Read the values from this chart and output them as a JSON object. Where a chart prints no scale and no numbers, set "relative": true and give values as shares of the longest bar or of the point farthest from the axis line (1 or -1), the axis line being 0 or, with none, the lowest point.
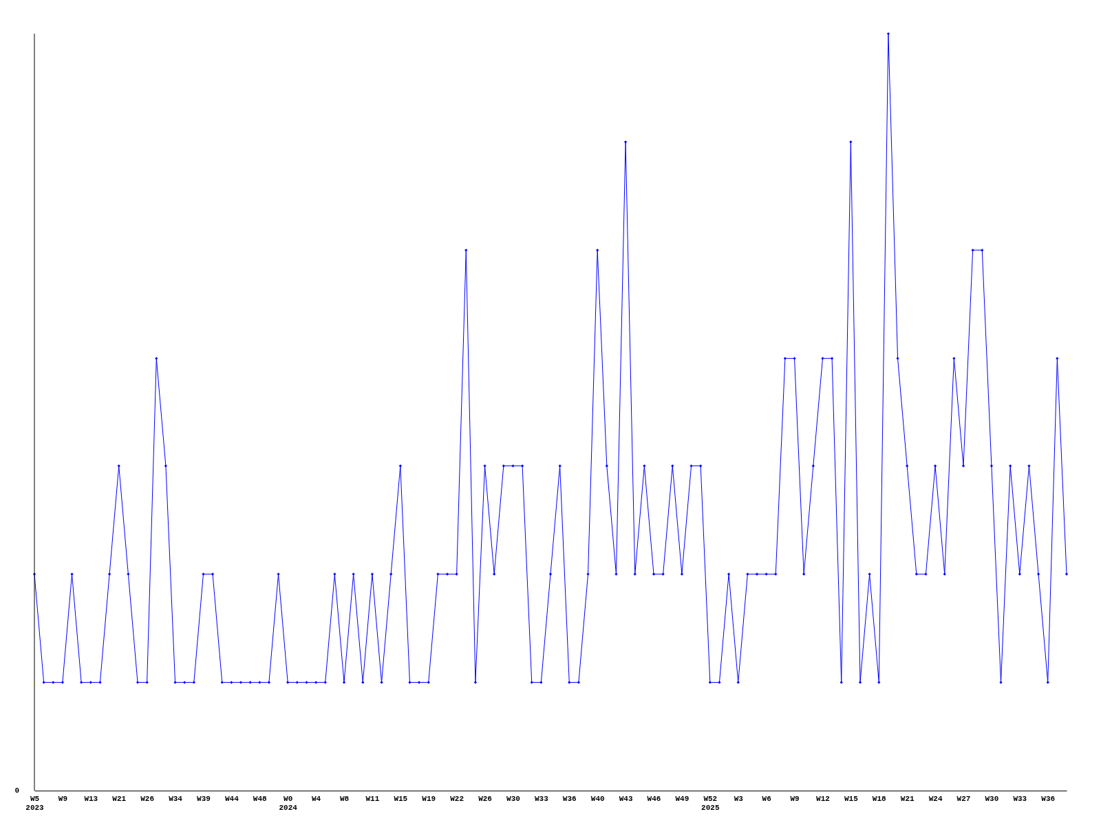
{
  "chart_data": {
    "type": "line",
    "relative": true,
    "marker": "diamond",
    "line_style": "solid",
    "grid": false,
    "categories": [
      "W5\n2023",
      null,
      null,
      "W9",
      null,
      null,
      "W13",
      null,
      null,
      "W21",
      null,
      null,
      "W26",
      null,
      null,
      "W34",
      null,
      null,
      "W39",
      null,
      null,
      "W44",
      null,
      null,
      "W48",
      null,
      null,
      "W0\n2024",
      null,
      null,
      "W4",
      null,
      null,
      "W8",
      null,
      null,
      "W11",
      null,
      null,
      "W15",
      null,
      null,
      "W19",
      null,
      null,
      "W22",
      null,
      null,
      "W26",
      null,
      null,
      "W30",
      null,
      null,
      "W33",
      null,
      null,
      "W36",
      null,
      null,
      "W40",
      null,
      null,
      "W43",
      null,
      null,
      "W46",
      null,
      null,
      "W49",
      null,
      null,
      "W52\n2025",
      null,
      null,
      "W3",
      null,
      null,
      "W6",
      null,
      null,
      "W9",
      null,
      null,
      "W12",
      null,
      null,
      "W15",
      null,
      null,
      "W18",
      null,
      null,
      "W21",
      null,
      null,
      "W24",
      null,
      null,
      "W27",
      null,
      null,
      "W30",
      null,
      null,
      "W33",
      null,
      null,
      "W36",
      null,
      null
    ],
    "series": [
      {
        "color": "#0000ff",
        "values": [
          0.286,
          0.143,
          0.143,
          0.143,
          0.286,
          0.143,
          0.143,
          0.143,
          0.286,
          0.429,
          0.286,
          0.143,
          0.143,
          0.571,
          0.429,
          0.143,
          0.143,
          0.143,
          0.286,
          0.286,
          0.143,
          0.143,
          0.143,
          0.143,
          0.143,
          0.143,
          0.286,
          0.143,
          0.143,
          0.143,
          0.143,
          0.143,
          0.286,
          0.143,
          0.286,
          0.143,
          0.286,
          0.143,
          0.286,
          0.429,
          0.143,
          0.143,
          0.143,
          0.286,
          0.286,
          0.286,
          0.714,
          0.143,
          0.429,
          0.286,
          0.429,
          0.429,
          0.429,
          0.143,
          0.143,
          0.286,
          0.429,
          0.143,
          0.143,
          0.286,
          0.714,
          0.429,
          0.286,
          0.857,
          0.286,
          0.429,
          0.286,
          0.286,
          0.429,
          0.286,
          0.429,
          0.429,
          0.143,
          0.143,
          0.286,
          0.143,
          0.286,
          0.286,
          0.286,
          0.286,
          0.571,
          0.571,
          0.286,
          0.429,
          0.571,
          0.571,
          0.143,
          0.857,
          0.143,
          0.286,
          0.143,
          1,
          0.571,
          0.429,
          0.286,
          0.286,
          0.429,
          0.286,
          0.571,
          0.429,
          0.714,
          0.714,
          0.429,
          0.143,
          0.429,
          0.286,
          0.429,
          0.286,
          0.143,
          0.571,
          0.286
        ]
      }
    ],
    "annotations": [
      "0"
    ]
  }
}
